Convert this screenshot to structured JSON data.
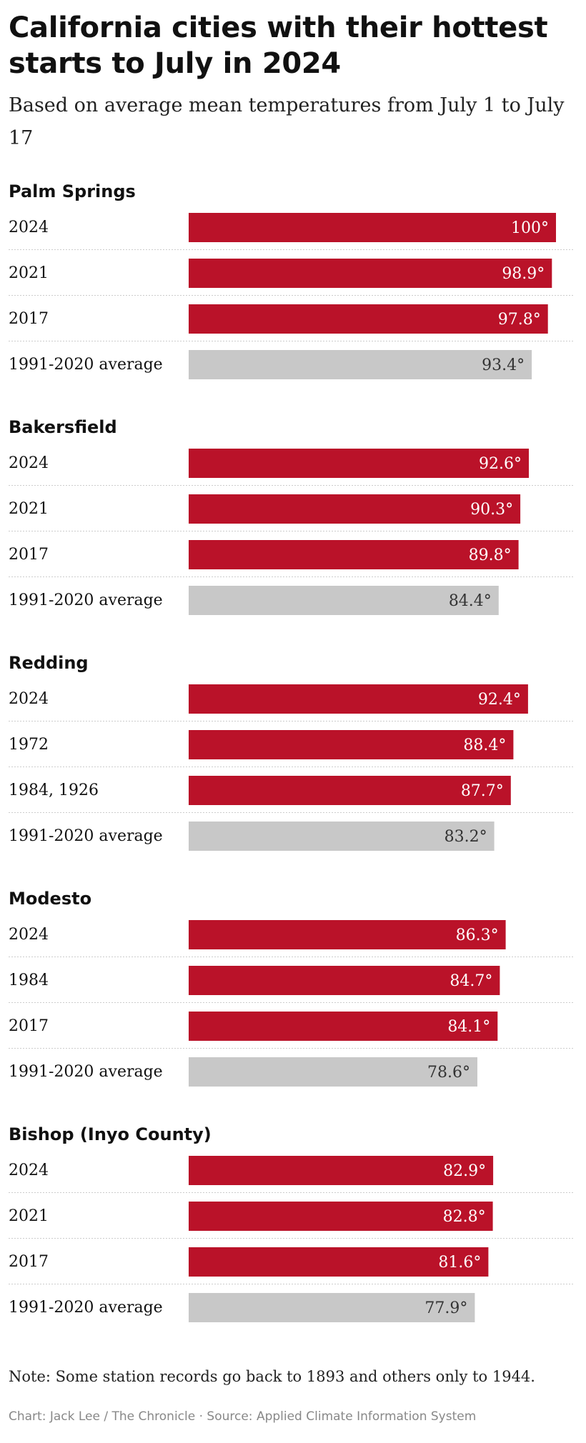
{
  "title": "California cities with their hottest starts to July in 2024",
  "subtitle": "Based on average mean temperatures from July 1 to July 17",
  "note": "Note: Some station records go back to 1893 and others only to 1944.",
  "credit": "Chart: Jack Lee / The Chronicle · Source: Applied Climate Information System",
  "colors": {
    "highlight": "#ba1229",
    "average": "#c8c8c8",
    "highlight_text": "#ffffff",
    "average_text": "#333333",
    "separator": "#cccccc"
  },
  "chart_data": {
    "type": "bar",
    "orientation": "horizontal",
    "value_suffix": "°",
    "xlim": [
      0,
      100
    ],
    "groups": [
      {
        "name": "Palm Springs",
        "rows": [
          {
            "label": "2024",
            "value": 100,
            "display": "100°",
            "kind": "record"
          },
          {
            "label": "2021",
            "value": 98.9,
            "display": "98.9°",
            "kind": "record"
          },
          {
            "label": "2017",
            "value": 97.8,
            "display": "97.8°",
            "kind": "record"
          },
          {
            "label": "1991-2020 average",
            "value": 93.4,
            "display": "93.4°",
            "kind": "average"
          }
        ]
      },
      {
        "name": "Bakersfield",
        "rows": [
          {
            "label": "2024",
            "value": 92.6,
            "display": "92.6°",
            "kind": "record"
          },
          {
            "label": "2021",
            "value": 90.3,
            "display": "90.3°",
            "kind": "record"
          },
          {
            "label": "2017",
            "value": 89.8,
            "display": "89.8°",
            "kind": "record"
          },
          {
            "label": "1991-2020 average",
            "value": 84.4,
            "display": "84.4°",
            "kind": "average"
          }
        ]
      },
      {
        "name": "Redding",
        "rows": [
          {
            "label": "2024",
            "value": 92.4,
            "display": "92.4°",
            "kind": "record"
          },
          {
            "label": "1972",
            "value": 88.4,
            "display": "88.4°",
            "kind": "record"
          },
          {
            "label": "1984, 1926",
            "value": 87.7,
            "display": "87.7°",
            "kind": "record"
          },
          {
            "label": "1991-2020 average",
            "value": 83.2,
            "display": "83.2°",
            "kind": "average"
          }
        ]
      },
      {
        "name": "Modesto",
        "rows": [
          {
            "label": "2024",
            "value": 86.3,
            "display": "86.3°",
            "kind": "record"
          },
          {
            "label": "1984",
            "value": 84.7,
            "display": "84.7°",
            "kind": "record"
          },
          {
            "label": "2017",
            "value": 84.1,
            "display": "84.1°",
            "kind": "record"
          },
          {
            "label": "1991-2020 average",
            "value": 78.6,
            "display": "78.6°",
            "kind": "average"
          }
        ]
      },
      {
        "name": "Bishop (Inyo County)",
        "rows": [
          {
            "label": "2024",
            "value": 82.9,
            "display": "82.9°",
            "kind": "record"
          },
          {
            "label": "2021",
            "value": 82.8,
            "display": "82.8°",
            "kind": "record"
          },
          {
            "label": "2017",
            "value": 81.6,
            "display": "81.6°",
            "kind": "record"
          },
          {
            "label": "1991-2020 average",
            "value": 77.9,
            "display": "77.9°",
            "kind": "average"
          }
        ]
      }
    ]
  }
}
